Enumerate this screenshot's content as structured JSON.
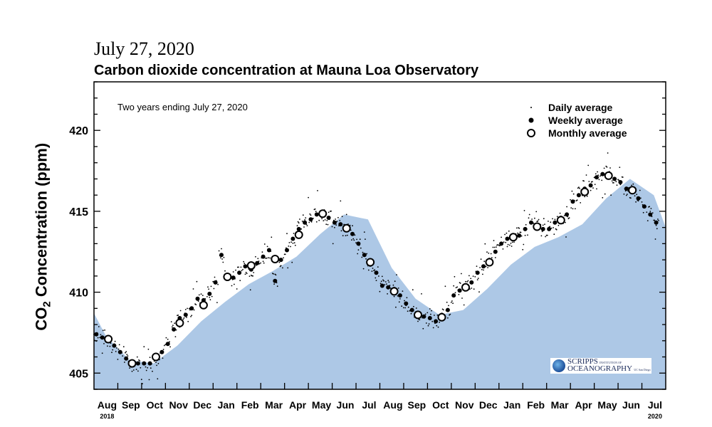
{
  "header": {
    "date": "July 27, 2020",
    "title": "Carbon dioxide concentration at Mauna Loa Observatory"
  },
  "logo": {
    "line1": "SCRIPPS",
    "line1b": "INSTITUTION OF",
    "line2": "OCEANOGRAPHY",
    "line2b": "UC San Diego"
  },
  "colors": {
    "fill": "#adc8e6",
    "marks": "#000000"
  },
  "chart_data": {
    "type": "scatter",
    "title": "Carbon dioxide concentration at Mauna Loa Observatory",
    "annotation": "Two years ending July 27, 2020",
    "ylabel_main": "CO",
    "ylabel_sub": "2",
    "ylabel_rest": " Concentration (ppm)",
    "ylim": [
      404,
      423
    ],
    "yticks": [
      405,
      410,
      415,
      420
    ],
    "ytick_labels": [
      "405",
      "410",
      "415",
      "420"
    ],
    "xlim_months": [
      0,
      24
    ],
    "x_tick_labels": [
      "Aug",
      "Sep",
      "Oct",
      "Nov",
      "Dec",
      "Jan",
      "Feb",
      "Mar",
      "Apr",
      "May",
      "Jun",
      "Jul",
      "Aug",
      "Sep",
      "Oct",
      "Nov",
      "Dec",
      "Jan",
      "Feb",
      "Mar",
      "Apr",
      "May",
      "Jun",
      "Jul"
    ],
    "year_labels": [
      "2018",
      "2020"
    ],
    "legend": {
      "placement": "top-right",
      "items": [
        "Daily average",
        "Weekly average",
        "Monthly average"
      ]
    },
    "monthly": [
      407.1,
      405.6,
      406.0,
      408.1,
      409.2,
      410.95,
      411.65,
      412.05,
      413.55,
      414.85,
      413.95,
      411.85,
      410.05,
      408.6,
      408.45,
      410.3,
      411.85,
      413.4,
      414.05,
      414.45,
      416.2,
      417.2,
      416.3
    ],
    "weekly": [
      407.4,
      407.2,
      407.0,
      406.7,
      406.3,
      405.9,
      405.6,
      405.6,
      405.6,
      405.6,
      405.9,
      406.3,
      406.8,
      407.7,
      408.4,
      408.6,
      409.0,
      409.6,
      409.5,
      409.9,
      410.6,
      412.3,
      411.0,
      410.9,
      411.2,
      411.6,
      411.4,
      411.8,
      412.2,
      412.6,
      410.7,
      412.0,
      412.6,
      413.3,
      413.9,
      414.3,
      414.5,
      414.8,
      414.9,
      414.6,
      414.3,
      414.2,
      413.9,
      413.6,
      413.0,
      412.3,
      411.7,
      411.2,
      410.4,
      410.3,
      410.2,
      409.8,
      409.3,
      408.9,
      408.6,
      408.5,
      408.4,
      408.2,
      408.6,
      408.9,
      409.8,
      410.1,
      410.4,
      410.6,
      411.2,
      411.6,
      412.0,
      412.5,
      413.0,
      413.3,
      413.4,
      413.5,
      413.9,
      414.3,
      414.1,
      413.9,
      413.9,
      414.3,
      414.6,
      414.8,
      415.6,
      416.0,
      416.4,
      416.6,
      417.1,
      417.3,
      417.3,
      417.0,
      416.8,
      416.4,
      416.2,
      415.8,
      415.3,
      414.8,
      414.3
    ],
    "fit_curve": [
      [
        0,
        408.7
      ],
      [
        0.5,
        407.3
      ],
      [
        1.5,
        405.8
      ],
      [
        2.5,
        405.6
      ],
      [
        3.5,
        406.7
      ],
      [
        4.5,
        408.2
      ],
      [
        5.5,
        409.4
      ],
      [
        6.5,
        410.5
      ],
      [
        7.5,
        411.3
      ],
      [
        8.5,
        412.2
      ],
      [
        9.5,
        413.6
      ],
      [
        10.5,
        414.8
      ],
      [
        11.5,
        414.5
      ],
      [
        12.5,
        411.5
      ],
      [
        13.5,
        409.6
      ],
      [
        14.5,
        408.6
      ],
      [
        15.5,
        408.9
      ],
      [
        16.5,
        410.2
      ],
      [
        17.5,
        411.7
      ],
      [
        18.5,
        412.8
      ],
      [
        19.5,
        413.4
      ],
      [
        20.5,
        414.2
      ],
      [
        21.5,
        415.8
      ],
      [
        22.5,
        417.0
      ],
      [
        23.5,
        416.0
      ],
      [
        24,
        414.0
      ]
    ]
  }
}
